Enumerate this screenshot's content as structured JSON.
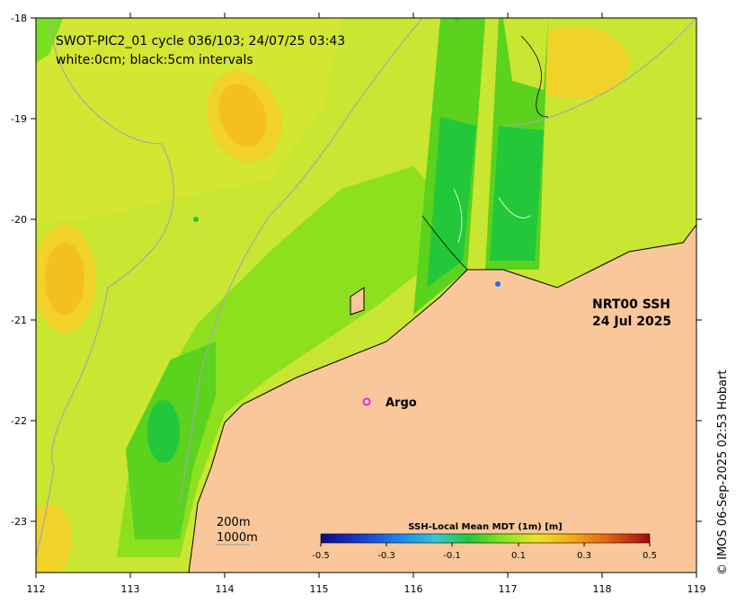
{
  "title": "SWOT-PIC2_01 cycle 036/103; 24/07/25 03:43",
  "subtitle": "white:0cm; black:5cm intervals",
  "product": {
    "line1": "NRT00 SSH",
    "line2": "24 Jul 2025"
  },
  "argo_label": "Argo",
  "copyright": "© IMOS 06-Sep-2025 02:53 Hobart",
  "bathy_legend": {
    "contour1": "200m",
    "contour2": "1000m"
  },
  "axes": {
    "x_ticks": [
      "112",
      "113",
      "114",
      "115",
      "116",
      "117",
      "118",
      "119"
    ],
    "y_ticks": [
      "-18",
      "-19",
      "-20",
      "-21",
      "-22",
      "-23"
    ]
  },
  "colorbar": {
    "title": "SSH-Local Mean MDT (1m) [m]",
    "ticks": [
      "-0.5",
      "-0.3",
      "-0.1",
      "0.1",
      "0.3",
      "0.5"
    ],
    "range": [
      -0.5,
      0.5
    ],
    "colors": [
      "#0a0a80",
      "#1a3cc8",
      "#1e8cf0",
      "#32c8d2",
      "#22c83a",
      "#7ee61e",
      "#e6e628",
      "#f5b414",
      "#e66414",
      "#c81e0a",
      "#a00a0a"
    ]
  },
  "colors": {
    "land": "#f9c79a",
    "ocean_base": "#c8e632",
    "green_mid": "#78e01e",
    "green_dark": "#22c83a",
    "yellow_orange": "#f0d228",
    "orange": "#f5b414"
  }
}
